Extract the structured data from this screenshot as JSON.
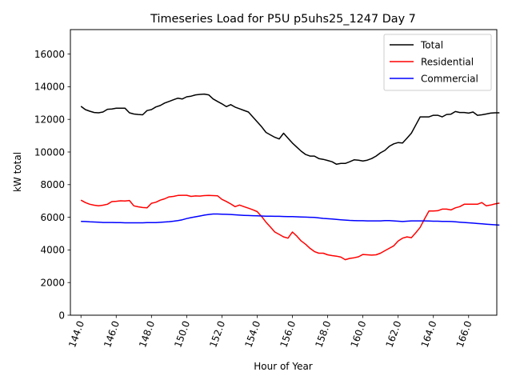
{
  "chart_data": {
    "type": "line",
    "title": "Timeseries Load for P5U p5uhs25_1247  Day 7",
    "xlabel": "Hour of Year",
    "ylabel": "kW total",
    "xlim": [
      143.4,
      167.6
    ],
    "ylim": [
      0,
      17500
    ],
    "xticks": [
      144,
      146,
      148,
      150,
      152,
      154,
      156,
      158,
      160,
      162,
      164,
      166
    ],
    "xtick_labels": [
      "144.0",
      "146.0",
      "148.0",
      "150.0",
      "152.0",
      "154.0",
      "156.0",
      "158.0",
      "160.0",
      "162.0",
      "164.0",
      "166.0"
    ],
    "yticks": [
      0,
      2000,
      4000,
      6000,
      8000,
      10000,
      12000,
      14000,
      16000
    ],
    "ytick_labels": [
      "0",
      "2000",
      "4000",
      "6000",
      "8000",
      "10000",
      "12000",
      "14000",
      "16000"
    ],
    "grid": false,
    "legend_position": "top-right",
    "x": [
      144.0,
      144.25,
      144.5,
      144.75,
      145.0,
      145.25,
      145.5,
      145.75,
      146.0,
      146.25,
      146.5,
      146.75,
      147.0,
      147.25,
      147.5,
      147.75,
      148.0,
      148.25,
      148.5,
      148.75,
      149.0,
      149.25,
      149.5,
      149.75,
      150.0,
      150.25,
      150.5,
      150.75,
      151.0,
      151.25,
      151.5,
      151.75,
      152.0,
      152.25,
      152.5,
      152.75,
      153.0,
      153.25,
      153.5,
      153.75,
      154.0,
      154.25,
      154.5,
      154.75,
      155.0,
      155.25,
      155.5,
      155.75,
      156.0,
      156.25,
      156.5,
      156.75,
      157.0,
      157.25,
      157.5,
      157.75,
      158.0,
      158.25,
      158.5,
      158.75,
      159.0,
      159.25,
      159.5,
      159.75,
      160.0,
      160.25,
      160.5,
      160.75,
      161.0,
      161.25,
      161.5,
      161.75,
      162.0,
      162.25,
      162.5,
      162.75,
      163.0,
      163.25,
      163.5,
      163.75,
      164.0,
      164.25,
      164.5,
      164.75,
      165.0,
      165.25,
      165.5,
      165.75,
      166.0,
      166.25,
      166.5,
      166.75,
      167.0,
      167.25,
      167.5,
      167.75
    ],
    "series": [
      {
        "name": "Total",
        "color": "#000000",
        "values": [
          12800,
          12600,
          12500,
          12420,
          12400,
          12450,
          12620,
          12630,
          12680,
          12680,
          12680,
          12400,
          12330,
          12300,
          12280,
          12540,
          12600,
          12760,
          12850,
          13000,
          13100,
          13200,
          13300,
          13250,
          13380,
          13420,
          13500,
          13530,
          13550,
          13500,
          13250,
          13100,
          12950,
          12780,
          12900,
          12750,
          12650,
          12550,
          12450,
          12150,
          11850,
          11550,
          11200,
          11050,
          10900,
          10800,
          11150,
          10850,
          10550,
          10300,
          10050,
          9850,
          9750,
          9750,
          9600,
          9550,
          9480,
          9400,
          9250,
          9300,
          9300,
          9400,
          9520,
          9500,
          9450,
          9500,
          9600,
          9750,
          9950,
          10100,
          10350,
          10500,
          10580,
          10550,
          10850,
          11150,
          11650,
          12150,
          12150,
          12150,
          12250,
          12250,
          12150,
          12300,
          12320,
          12480,
          12420,
          12420,
          12380,
          12450,
          12250,
          12280,
          12330,
          12380,
          12400,
          12400
        ]
      },
      {
        "name": "Residential",
        "color": "#ff0000",
        "values": [
          7050,
          6900,
          6800,
          6740,
          6700,
          6740,
          6800,
          6960,
          6980,
          7010,
          7000,
          7030,
          6700,
          6640,
          6600,
          6580,
          6860,
          6920,
          7050,
          7130,
          7250,
          7280,
          7340,
          7350,
          7350,
          7280,
          7310,
          7300,
          7330,
          7340,
          7330,
          7320,
          7100,
          6970,
          6820,
          6650,
          6750,
          6650,
          6560,
          6460,
          6350,
          6050,
          5700,
          5400,
          5100,
          4950,
          4800,
          4720,
          5100,
          4850,
          4550,
          4350,
          4100,
          3900,
          3800,
          3800,
          3700,
          3650,
          3620,
          3560,
          3400,
          3480,
          3520,
          3580,
          3720,
          3700,
          3680,
          3700,
          3800,
          3950,
          4100,
          4250,
          4550,
          4720,
          4800,
          4750,
          5050,
          5380,
          5900,
          6380,
          6380,
          6400,
          6500,
          6500,
          6450,
          6580,
          6650,
          6800,
          6800,
          6800,
          6800,
          6900,
          6700,
          6750,
          6820,
          6870
        ]
      },
      {
        "name": "Commercial",
        "color": "#0000ff",
        "values": [
          5750,
          5740,
          5720,
          5710,
          5700,
          5680,
          5680,
          5680,
          5670,
          5670,
          5660,
          5660,
          5660,
          5660,
          5660,
          5670,
          5670,
          5670,
          5690,
          5710,
          5730,
          5760,
          5800,
          5850,
          5920,
          5980,
          6030,
          6080,
          6130,
          6170,
          6200,
          6200,
          6190,
          6180,
          6170,
          6150,
          6130,
          6120,
          6110,
          6100,
          6090,
          6080,
          6070,
          6070,
          6060,
          6060,
          6050,
          6040,
          6040,
          6030,
          6020,
          6010,
          6000,
          5990,
          5960,
          5930,
          5910,
          5890,
          5870,
          5850,
          5830,
          5810,
          5800,
          5790,
          5790,
          5780,
          5780,
          5780,
          5780,
          5800,
          5800,
          5780,
          5760,
          5740,
          5760,
          5780,
          5780,
          5780,
          5780,
          5770,
          5760,
          5760,
          5750,
          5750,
          5740,
          5720,
          5700,
          5680,
          5660,
          5640,
          5620,
          5600,
          5580,
          5560,
          5540,
          5520
        ]
      }
    ]
  }
}
